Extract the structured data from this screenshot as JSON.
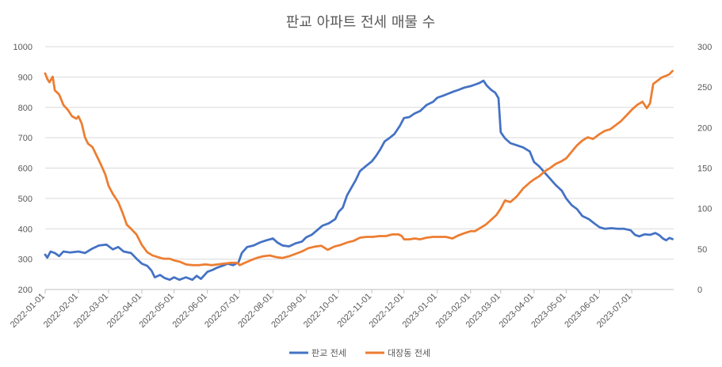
{
  "chart_data": {
    "type": "line",
    "title": "판교 아파트 전세 매물 수",
    "xlabel": "",
    "ylabel": "",
    "y2label": "",
    "ylim": [
      200,
      1000
    ],
    "y2lim": [
      0,
      300
    ],
    "y_ticks": [
      "200",
      "300",
      "400",
      "500",
      "600",
      "700",
      "800",
      "900",
      "1000"
    ],
    "y2_ticks": [
      "0",
      "50",
      "100",
      "150",
      "200",
      "250",
      "300"
    ],
    "x_ticks": [
      "2022-01-01",
      "2022-02-01",
      "2022-03-01",
      "2022-04-01",
      "2022-05-01",
      "2022-06-01",
      "2022-07-01",
      "2022-08-01",
      "2022-09-01",
      "2022-10-01",
      "2022-11-01",
      "2022-12-01",
      "2023-01-01",
      "2023-02-01",
      "2023-03-01",
      "2023-04-01",
      "2023-05-01",
      "2023-06-01",
      "2023-07-01"
    ],
    "grid": true,
    "legend": "bottom",
    "series": [
      {
        "name": "판교 전세",
        "axis": "left",
        "color": "#4472C4",
        "points": [
          [
            "2022-01-01",
            315
          ],
          [
            "2022-01-03",
            305
          ],
          [
            "2022-01-06",
            325
          ],
          [
            "2022-01-10",
            320
          ],
          [
            "2022-01-14",
            310
          ],
          [
            "2022-01-18",
            325
          ],
          [
            "2022-01-24",
            322
          ],
          [
            "2022-02-01",
            325
          ],
          [
            "2022-02-07",
            320
          ],
          [
            "2022-02-14",
            335
          ],
          [
            "2022-02-20",
            345
          ],
          [
            "2022-02-27",
            348
          ],
          [
            "2022-03-05",
            332
          ],
          [
            "2022-03-10",
            340
          ],
          [
            "2022-03-15",
            325
          ],
          [
            "2022-03-22",
            320
          ],
          [
            "2022-03-28",
            298
          ],
          [
            "2022-04-01",
            285
          ],
          [
            "2022-04-06",
            278
          ],
          [
            "2022-04-10",
            262
          ],
          [
            "2022-04-13",
            240
          ],
          [
            "2022-04-18",
            248
          ],
          [
            "2022-04-22",
            238
          ],
          [
            "2022-04-27",
            232
          ],
          [
            "2022-05-01",
            240
          ],
          [
            "2022-05-06",
            232
          ],
          [
            "2022-05-12",
            240
          ],
          [
            "2022-05-18",
            232
          ],
          [
            "2022-05-22",
            245
          ],
          [
            "2022-05-26",
            235
          ],
          [
            "2022-06-01",
            258
          ],
          [
            "2022-06-06",
            265
          ],
          [
            "2022-06-10",
            272
          ],
          [
            "2022-06-15",
            278
          ],
          [
            "2022-06-20",
            285
          ],
          [
            "2022-06-25",
            280
          ],
          [
            "2022-06-30",
            290
          ],
          [
            "2022-07-03",
            320
          ],
          [
            "2022-07-08",
            340
          ],
          [
            "2022-07-14",
            345
          ],
          [
            "2022-07-20",
            355
          ],
          [
            "2022-07-26",
            362
          ],
          [
            "2022-08-01",
            368
          ],
          [
            "2022-08-05",
            355
          ],
          [
            "2022-08-10",
            345
          ],
          [
            "2022-08-16",
            342
          ],
          [
            "2022-08-22",
            352
          ],
          [
            "2022-08-28",
            358
          ],
          [
            "2022-09-01",
            372
          ],
          [
            "2022-09-06",
            380
          ],
          [
            "2022-09-11",
            395
          ],
          [
            "2022-09-16",
            410
          ],
          [
            "2022-09-22",
            418
          ],
          [
            "2022-09-28",
            432
          ],
          [
            "2022-10-01",
            455
          ],
          [
            "2022-10-05",
            470
          ],
          [
            "2022-10-09",
            510
          ],
          [
            "2022-10-13",
            535
          ],
          [
            "2022-10-17",
            560
          ],
          [
            "2022-10-21",
            590
          ],
          [
            "2022-10-26",
            605
          ],
          [
            "2022-11-01",
            622
          ],
          [
            "2022-11-05",
            640
          ],
          [
            "2022-11-09",
            662
          ],
          [
            "2022-11-13",
            688
          ],
          [
            "2022-11-17",
            698
          ],
          [
            "2022-11-22",
            712
          ],
          [
            "2022-11-27",
            738
          ],
          [
            "2022-12-01",
            765
          ],
          [
            "2022-12-06",
            768
          ],
          [
            "2022-12-11",
            780
          ],
          [
            "2022-12-16",
            788
          ],
          [
            "2022-12-22",
            808
          ],
          [
            "2022-12-28",
            818
          ],
          [
            "2023-01-01",
            832
          ],
          [
            "2023-01-06",
            838
          ],
          [
            "2023-01-11",
            845
          ],
          [
            "2023-01-16",
            852
          ],
          [
            "2023-01-21",
            858
          ],
          [
            "2023-01-26",
            865
          ],
          [
            "2023-02-01",
            870
          ],
          [
            "2023-02-05",
            875
          ],
          [
            "2023-02-09",
            880
          ],
          [
            "2023-02-13",
            888
          ],
          [
            "2023-02-16",
            872
          ],
          [
            "2023-02-20",
            858
          ],
          [
            "2023-02-24",
            848
          ],
          [
            "2023-02-27",
            830
          ],
          [
            "2023-03-01",
            718
          ],
          [
            "2023-03-05",
            698
          ],
          [
            "2023-03-10",
            682
          ],
          [
            "2023-03-16",
            675
          ],
          [
            "2023-03-22",
            668
          ],
          [
            "2023-03-28",
            655
          ],
          [
            "2023-04-01",
            620
          ],
          [
            "2023-04-06",
            605
          ],
          [
            "2023-04-11",
            585
          ],
          [
            "2023-04-16",
            565
          ],
          [
            "2023-04-21",
            545
          ],
          [
            "2023-04-27",
            525
          ],
          [
            "2023-05-01",
            500
          ],
          [
            "2023-05-06",
            478
          ],
          [
            "2023-05-11",
            465
          ],
          [
            "2023-05-16",
            442
          ],
          [
            "2023-05-22",
            432
          ],
          [
            "2023-05-27",
            418
          ],
          [
            "2023-06-01",
            405
          ],
          [
            "2023-06-06",
            400
          ],
          [
            "2023-06-12",
            402
          ],
          [
            "2023-06-18",
            400
          ],
          [
            "2023-06-24",
            400
          ],
          [
            "2023-06-30",
            395
          ],
          [
            "2023-07-04",
            380
          ],
          [
            "2023-07-08",
            375
          ],
          [
            "2023-07-13",
            382
          ],
          [
            "2023-07-18",
            380
          ],
          [
            "2023-07-23",
            386
          ],
          [
            "2023-07-27",
            378
          ],
          [
            "2023-07-30",
            368
          ],
          [
            "2023-08-02",
            362
          ],
          [
            "2023-08-05",
            370
          ],
          [
            "2023-08-08",
            366
          ]
        ]
      },
      {
        "name": "대장동 전세",
        "axis": "right",
        "color": "#ED7D31",
        "points": [
          [
            "2022-01-01",
            267
          ],
          [
            "2022-01-03",
            260
          ],
          [
            "2022-01-05",
            256
          ],
          [
            "2022-01-08",
            263
          ],
          [
            "2022-01-10",
            246
          ],
          [
            "2022-01-14",
            241
          ],
          [
            "2022-01-18",
            228
          ],
          [
            "2022-01-22",
            222
          ],
          [
            "2022-01-26",
            214
          ],
          [
            "2022-01-30",
            211
          ],
          [
            "2022-02-01",
            214
          ],
          [
            "2022-02-04",
            205
          ],
          [
            "2022-02-07",
            188
          ],
          [
            "2022-02-10",
            180
          ],
          [
            "2022-02-14",
            176
          ],
          [
            "2022-02-18",
            165
          ],
          [
            "2022-02-22",
            154
          ],
          [
            "2022-02-26",
            142
          ],
          [
            "2022-03-01",
            128
          ],
          [
            "2022-03-05",
            118
          ],
          [
            "2022-03-10",
            108
          ],
          [
            "2022-03-14",
            95
          ],
          [
            "2022-03-18",
            80
          ],
          [
            "2022-03-22",
            75
          ],
          [
            "2022-03-27",
            68
          ],
          [
            "2022-04-01",
            55
          ],
          [
            "2022-04-06",
            46
          ],
          [
            "2022-04-11",
            42
          ],
          [
            "2022-04-16",
            40
          ],
          [
            "2022-04-21",
            38
          ],
          [
            "2022-04-27",
            38
          ],
          [
            "2022-05-01",
            36
          ],
          [
            "2022-05-07",
            34
          ],
          [
            "2022-05-12",
            31
          ],
          [
            "2022-05-18",
            30
          ],
          [
            "2022-05-24",
            30
          ],
          [
            "2022-05-30",
            31
          ],
          [
            "2022-06-05",
            30
          ],
          [
            "2022-06-11",
            31
          ],
          [
            "2022-06-17",
            32
          ],
          [
            "2022-06-23",
            33
          ],
          [
            "2022-06-29",
            33
          ],
          [
            "2022-07-01",
            30
          ],
          [
            "2022-07-06",
            33
          ],
          [
            "2022-07-11",
            36
          ],
          [
            "2022-07-17",
            39
          ],
          [
            "2022-07-23",
            41
          ],
          [
            "2022-07-29",
            42
          ],
          [
            "2022-08-04",
            40
          ],
          [
            "2022-08-10",
            39
          ],
          [
            "2022-08-16",
            41
          ],
          [
            "2022-08-22",
            44
          ],
          [
            "2022-08-28",
            47
          ],
          [
            "2022-09-03",
            51
          ],
          [
            "2022-09-09",
            53
          ],
          [
            "2022-09-15",
            54
          ],
          [
            "2022-09-21",
            49
          ],
          [
            "2022-09-27",
            53
          ],
          [
            "2022-10-03",
            55
          ],
          [
            "2022-10-09",
            58
          ],
          [
            "2022-10-15",
            60
          ],
          [
            "2022-10-21",
            64
          ],
          [
            "2022-10-27",
            65
          ],
          [
            "2022-11-02",
            65
          ],
          [
            "2022-11-08",
            66
          ],
          [
            "2022-11-14",
            66
          ],
          [
            "2022-11-20",
            68
          ],
          [
            "2022-11-26",
            68
          ],
          [
            "2022-11-29",
            66
          ],
          [
            "2022-12-01",
            62
          ],
          [
            "2022-12-06",
            62
          ],
          [
            "2022-12-11",
            63
          ],
          [
            "2022-12-16",
            62
          ],
          [
            "2022-12-22",
            64
          ],
          [
            "2022-12-28",
            65
          ],
          [
            "2023-01-03",
            65
          ],
          [
            "2023-01-09",
            65
          ],
          [
            "2023-01-15",
            63
          ],
          [
            "2023-01-21",
            67
          ],
          [
            "2023-01-27",
            70
          ],
          [
            "2023-02-01",
            72
          ],
          [
            "2023-02-05",
            72
          ],
          [
            "2023-02-10",
            76
          ],
          [
            "2023-02-15",
            80
          ],
          [
            "2023-02-20",
            86
          ],
          [
            "2023-02-25",
            92
          ],
          [
            "2023-03-01",
            100
          ],
          [
            "2023-03-05",
            110
          ],
          [
            "2023-03-10",
            108
          ],
          [
            "2023-03-16",
            115
          ],
          [
            "2023-03-22",
            125
          ],
          [
            "2023-03-28",
            132
          ],
          [
            "2023-04-01",
            136
          ],
          [
            "2023-04-06",
            140
          ],
          [
            "2023-04-11",
            146
          ],
          [
            "2023-04-16",
            150
          ],
          [
            "2023-04-21",
            155
          ],
          [
            "2023-04-26",
            158
          ],
          [
            "2023-05-01",
            162
          ],
          [
            "2023-05-06",
            170
          ],
          [
            "2023-05-11",
            178
          ],
          [
            "2023-05-16",
            184
          ],
          [
            "2023-05-21",
            188
          ],
          [
            "2023-05-26",
            186
          ],
          [
            "2023-06-01",
            192
          ],
          [
            "2023-06-06",
            196
          ],
          [
            "2023-06-11",
            198
          ],
          [
            "2023-06-16",
            203
          ],
          [
            "2023-06-21",
            208
          ],
          [
            "2023-06-26",
            215
          ],
          [
            "2023-07-01",
            222
          ],
          [
            "2023-07-06",
            228
          ],
          [
            "2023-07-11",
            232
          ],
          [
            "2023-07-15",
            224
          ],
          [
            "2023-07-18",
            230
          ],
          [
            "2023-07-21",
            254
          ],
          [
            "2023-07-25",
            258
          ],
          [
            "2023-07-29",
            262
          ],
          [
            "2023-08-02",
            264
          ],
          [
            "2023-08-05",
            266
          ],
          [
            "2023-08-08",
            270
          ]
        ]
      }
    ]
  }
}
